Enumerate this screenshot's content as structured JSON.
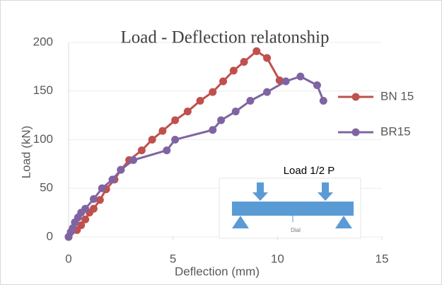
{
  "chart_data": {
    "type": "line",
    "title": "Load - Deflection relatonship",
    "x_label": "Deflection  (mm)",
    "y_label": "Load  (kN)",
    "xlim": [
      0,
      15
    ],
    "xticks": [
      0,
      5,
      10,
      15
    ],
    "ylim": [
      0,
      200
    ],
    "yticks": [
      0,
      50,
      100,
      150,
      200
    ],
    "grid": true,
    "legend": "right",
    "series": [
      {
        "name": "BN 15",
        "color": "#c0504d",
        "x": [
          0,
          0.4,
          0.6,
          0.8,
          1.0,
          1.2,
          1.5,
          1.8,
          2.2,
          2.5,
          2.9,
          3.5,
          4.0,
          4.5,
          5.1,
          5.7,
          6.3,
          6.9,
          7.4,
          7.9,
          8.4,
          9.0,
          9.5,
          10.1
        ],
        "values": [
          0,
          7,
          12,
          18,
          25,
          29,
          38,
          49,
          59,
          69,
          79,
          89,
          100,
          109,
          120,
          129,
          140,
          149,
          160,
          171,
          180,
          191,
          184,
          161
        ]
      },
      {
        "name": "BR15",
        "color": "#8064a2",
        "x": [
          0,
          0.1,
          0.2,
          0.3,
          0.45,
          0.6,
          0.8,
          1.2,
          1.6,
          2.1,
          2.5,
          3.1,
          4.7,
          5.1,
          6.9,
          7.3,
          8.0,
          8.7,
          9.5,
          10.4,
          11.1,
          11.9,
          12.2
        ],
        "values": [
          0,
          5,
          9,
          15,
          20,
          25,
          29,
          39,
          50,
          59,
          69,
          79,
          89,
          100,
          110,
          120,
          129,
          140,
          149,
          160,
          165,
          156,
          140
        ]
      }
    ],
    "annotations": [
      "Load  1/2 P",
      "Dial"
    ]
  }
}
